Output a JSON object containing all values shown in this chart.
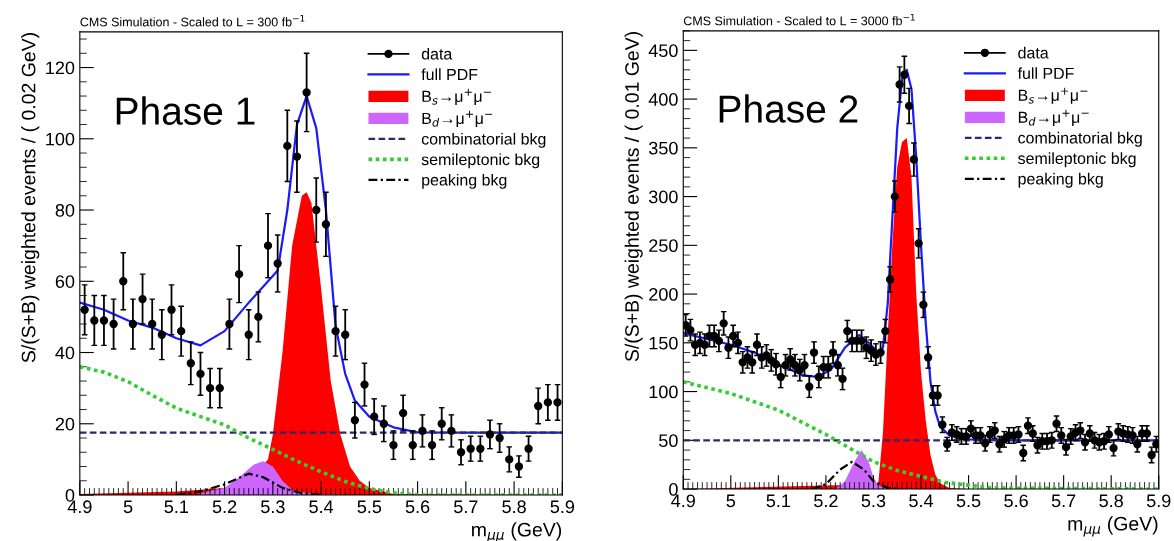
{
  "chart_data": [
    {
      "type": "line",
      "title": "CMS Simulation - Scaled to L = 300 fb$^{−1}$",
      "xlabel": "m$_{μμ}$ (GeV)",
      "ylabel": "S/(S+B) weighted events / ( 0.02 GeV)",
      "annotations": [
        "Phase 1"
      ],
      "xlim": [
        4.9,
        5.9
      ],
      "ylim": [
        0,
        130
      ],
      "xticks": [
        4.9,
        5,
        5.1,
        5.2,
        5.3,
        5.4,
        5.5,
        5.6,
        5.7,
        5.8,
        5.9
      ],
      "yticks": [
        0,
        20,
        40,
        60,
        80,
        100,
        120
      ],
      "legend": "top right",
      "grid": false,
      "series": [
        {
          "name": "data",
          "type": "scatter",
          "marker": "circle",
          "color": "#000000",
          "x": [
            4.91,
            4.93,
            4.95,
            4.97,
            4.99,
            5.01,
            5.03,
            5.05,
            5.07,
            5.09,
            5.11,
            5.13,
            5.15,
            5.17,
            5.19,
            5.21,
            5.23,
            5.25,
            5.27,
            5.29,
            5.31,
            5.33,
            5.35,
            5.37,
            5.39,
            5.41,
            5.43,
            5.45,
            5.47,
            5.49,
            5.51,
            5.53,
            5.55,
            5.57,
            5.59,
            5.61,
            5.63,
            5.65,
            5.67,
            5.69,
            5.71,
            5.73,
            5.75,
            5.77,
            5.79,
            5.81,
            5.83,
            5.85,
            5.87,
            5.89
          ],
          "values": [
            52,
            49,
            49,
            48,
            60,
            48,
            55,
            48,
            45,
            52,
            46,
            37,
            34,
            30,
            30,
            48,
            62,
            45,
            50,
            70,
            65,
            98,
            95,
            113,
            80,
            76,
            46,
            45,
            21,
            31,
            22,
            20,
            14,
            23,
            14,
            18,
            14,
            20,
            18,
            12,
            13,
            13,
            17,
            16,
            10,
            8,
            13,
            25,
            26,
            26
          ],
          "errors": [
            7,
            7,
            7,
            7,
            8,
            7,
            7,
            7,
            7,
            7,
            7,
            6,
            6,
            5.5,
            5.5,
            7,
            8,
            7,
            7,
            9,
            8,
            10,
            10,
            11,
            9,
            9,
            7,
            7,
            5,
            6,
            5,
            5,
            4,
            5,
            4,
            4.5,
            4,
            4.5,
            4.5,
            3.5,
            3.5,
            3.5,
            4,
            4,
            3.5,
            3,
            3.5,
            5,
            5,
            5
          ]
        },
        {
          "name": "full PDF",
          "line_style": "solid",
          "color": "#1a1aff",
          "x": [
            4.9,
            4.95,
            5.0,
            5.05,
            5.1,
            5.15,
            5.2,
            5.25,
            5.31,
            5.33,
            5.35,
            5.37,
            5.39,
            5.41,
            5.43,
            5.45,
            5.47,
            5.5,
            5.55,
            5.6,
            5.7,
            5.9
          ],
          "values": [
            54,
            52,
            49,
            47,
            44,
            42,
            46,
            54,
            63,
            80,
            104,
            112,
            103,
            80,
            47.5,
            34,
            26.5,
            22,
            19,
            17.6,
            17.5,
            17.5
          ]
        },
        {
          "name": "B$_{s}$→μ$^{+}$μ$^{−}$",
          "type": "area",
          "color": "#ff0000",
          "x": [
            4.9,
            5.1,
            5.2,
            5.25,
            5.29,
            5.3,
            5.32,
            5.34,
            5.36,
            5.37,
            5.38,
            5.4,
            5.42,
            5.44,
            5.46,
            5.48,
            5.5,
            5.55,
            5.9
          ],
          "values": [
            0.3,
            1,
            2,
            4,
            10,
            17,
            40,
            70,
            84,
            85,
            82,
            58,
            32,
            17,
            8,
            4,
            2,
            0.3,
            0
          ]
        },
        {
          "name": "B$_{d}$→μ$^{+}$μ$^{−}$",
          "type": "area",
          "color": "#cc66ff",
          "x": [
            5.15,
            5.2,
            5.23,
            5.26,
            5.28,
            5.3,
            5.32,
            5.34,
            5.38,
            5.45
          ],
          "values": [
            0.5,
            2,
            5,
            8.5,
            9.5,
            8,
            4,
            1.5,
            0.3,
            0
          ]
        },
        {
          "name": "combinatorial bkg",
          "line_style": "dashed",
          "color": "#2b2b6b",
          "x": [
            4.9,
            5.9
          ],
          "values": [
            17.5,
            17.5
          ]
        },
        {
          "name": "semileptonic bkg",
          "line_style": "dotted",
          "color": "#33cc33",
          "x": [
            4.9,
            4.95,
            5.0,
            5.05,
            5.1,
            5.15,
            5.2,
            5.25,
            5.3,
            5.35,
            5.4,
            5.45,
            5.5,
            5.55,
            5.6,
            5.9
          ],
          "values": [
            36,
            34.5,
            31.8,
            28,
            24.4,
            22,
            19.7,
            16,
            12.8,
            9.5,
            6.5,
            3.8,
            1.8,
            0.6,
            0,
            0
          ]
        },
        {
          "name": "peaking bkg",
          "line_style": "dashdot",
          "color": "#000000",
          "x": [
            5.1,
            5.15,
            5.2,
            5.25,
            5.28,
            5.32,
            5.36,
            5.4
          ],
          "values": [
            0,
            1,
            3,
            6,
            5,
            2,
            0.5,
            0
          ]
        }
      ]
    },
    {
      "type": "line",
      "title": "CMS Simulation - Scaled to L = 3000 fb$^{−1}$",
      "xlabel": "m$_{μμ}$ (GeV)",
      "ylabel": "S/(S+B) weighted events / ( 0.01 GeV)",
      "annotations": [
        "Phase 2"
      ],
      "xlim": [
        4.9,
        5.9
      ],
      "ylim": [
        0,
        470
      ],
      "xticks": [
        4.9,
        5,
        5.1,
        5.2,
        5.3,
        5.4,
        5.5,
        5.6,
        5.7,
        5.8,
        5.9
      ],
      "yticks": [
        0,
        50,
        100,
        150,
        200,
        250,
        300,
        350,
        400,
        450
      ],
      "legend": "top right",
      "grid": false,
      "series": [
        {
          "name": "data",
          "type": "scatter",
          "marker": "circle",
          "color": "#000000",
          "x": [
            4.905,
            4.915,
            4.925,
            4.935,
            4.945,
            4.955,
            4.965,
            4.975,
            4.985,
            4.995,
            5.005,
            5.015,
            5.025,
            5.035,
            5.045,
            5.055,
            5.065,
            5.075,
            5.085,
            5.095,
            5.105,
            5.115,
            5.125,
            5.135,
            5.145,
            5.155,
            5.165,
            5.175,
            5.185,
            5.195,
            5.205,
            5.215,
            5.225,
            5.235,
            5.245,
            5.255,
            5.265,
            5.275,
            5.285,
            5.295,
            5.305,
            5.315,
            5.325,
            5.335,
            5.345,
            5.355,
            5.365,
            5.375,
            5.385,
            5.395,
            5.405,
            5.415,
            5.425,
            5.435,
            5.445,
            5.455,
            5.465,
            5.475,
            5.485,
            5.495,
            5.505,
            5.515,
            5.525,
            5.535,
            5.545,
            5.555,
            5.565,
            5.575,
            5.585,
            5.595,
            5.605,
            5.615,
            5.625,
            5.635,
            5.645,
            5.655,
            5.665,
            5.675,
            5.685,
            5.695,
            5.705,
            5.715,
            5.725,
            5.735,
            5.745,
            5.755,
            5.765,
            5.775,
            5.785,
            5.795,
            5.805,
            5.815,
            5.825,
            5.835,
            5.845,
            5.855,
            5.865,
            5.875,
            5.885,
            5.895
          ],
          "values": [
            168,
            163,
            148,
            150,
            148,
            157,
            157,
            152,
            170,
            145,
            157,
            150,
            130,
            135,
            130,
            148,
            135,
            137,
            132,
            128,
            115,
            127,
            133,
            127,
            122,
            127,
            105,
            140,
            115,
            125,
            125,
            140,
            127,
            113,
            162,
            152,
            152,
            152,
            145,
            142,
            138,
            140,
            162,
            215,
            300,
            415,
            425,
            393,
            338,
            252,
            189,
            135,
            96,
            96,
            66,
            46,
            58,
            56,
            54,
            54,
            62,
            55,
            55,
            47,
            56,
            60,
            46,
            51,
            55,
            55,
            56,
            37,
            65,
            57,
            45,
            49,
            49,
            50,
            67,
            55,
            43,
            54,
            58,
            60,
            48,
            57,
            50,
            48,
            49,
            56,
            42,
            59,
            57,
            56,
            55,
            46,
            57,
            57,
            35,
            46
          ],
          "errors": [
            11,
            11,
            11,
            11,
            11,
            11,
            11,
            11,
            12,
            11,
            11,
            11,
            11,
            11,
            11,
            11,
            11,
            11,
            11,
            11,
            11,
            11,
            11,
            11,
            11,
            11,
            11,
            11,
            11,
            11,
            11,
            11,
            11,
            11,
            11,
            11,
            11,
            11,
            11,
            11,
            11,
            11,
            12,
            13,
            16,
            18,
            19,
            18,
            17,
            15,
            13,
            11,
            10,
            10,
            8,
            7,
            8,
            8,
            8,
            8,
            8,
            8,
            8,
            8,
            8,
            8,
            8,
            8,
            8,
            8,
            8,
            8,
            8,
            8,
            8,
            8,
            8,
            8,
            8,
            8,
            8,
            8,
            8,
            8,
            8,
            8,
            8,
            8,
            8,
            8,
            8,
            8,
            8,
            8,
            8,
            8,
            8,
            8,
            8,
            8
          ]
        },
        {
          "name": "full PDF",
          "line_style": "solid",
          "color": "#1a1aff",
          "x": [
            4.9,
            5.0,
            5.05,
            5.1,
            5.15,
            5.18,
            5.21,
            5.24,
            5.27,
            5.29,
            5.31,
            5.32,
            5.33,
            5.34,
            5.35,
            5.36,
            5.37,
            5.38,
            5.39,
            5.4,
            5.41,
            5.42,
            5.43,
            5.44,
            5.46,
            5.5,
            5.6,
            5.9
          ],
          "values": [
            160,
            148,
            140,
            128,
            117,
            115,
            122,
            145,
            158,
            150,
            140,
            145,
            190,
            280,
            370,
            420,
            430,
            410,
            340,
            250,
            170,
            110,
            80,
            64,
            55,
            51,
            50,
            50
          ]
        },
        {
          "name": "B$_{s}$→μ$^{+}$μ$^{−}$",
          "type": "area",
          "color": "#ff0000",
          "x": [
            4.9,
            5.31,
            5.32,
            5.33,
            5.34,
            5.35,
            5.36,
            5.37,
            5.38,
            5.39,
            5.4,
            5.41,
            5.42,
            5.43,
            5.44,
            5.46,
            5.5,
            5.9
          ],
          "values": [
            0,
            5,
            58,
            158,
            253,
            330,
            356,
            360,
            320,
            200,
            120,
            70,
            35,
            15,
            6,
            1,
            0,
            0
          ]
        },
        {
          "name": "B$_{d}$→μ$^{+}$μ$^{−}$",
          "type": "area",
          "color": "#cc66ff",
          "x": [
            5.22,
            5.24,
            5.26,
            5.275,
            5.29,
            5.3,
            5.31,
            5.33
          ],
          "values": [
            0,
            8,
            28,
            40,
            28,
            12,
            4,
            0
          ]
        },
        {
          "name": "combinatorial bkg",
          "line_style": "dashed",
          "color": "#2b2b6b",
          "x": [
            4.9,
            5.9
          ],
          "values": [
            50,
            50
          ]
        },
        {
          "name": "semileptonic bkg",
          "line_style": "dotted",
          "color": "#33cc33",
          "x": [
            4.9,
            5.0,
            5.1,
            5.2,
            5.25,
            5.3,
            5.35,
            5.4,
            5.45,
            5.5,
            5.55,
            5.9
          ],
          "values": [
            110,
            98,
            81,
            56,
            42,
            28,
            19,
            13,
            7,
            4,
            1,
            0
          ]
        },
        {
          "name": "peaking bkg",
          "line_style": "dashdot",
          "color": "#000000",
          "x": [
            5.17,
            5.2,
            5.23,
            5.255,
            5.28,
            5.3,
            5.33,
            5.35
          ],
          "values": [
            0,
            5,
            20,
            28,
            20,
            8,
            1,
            0
          ]
        }
      ]
    }
  ]
}
